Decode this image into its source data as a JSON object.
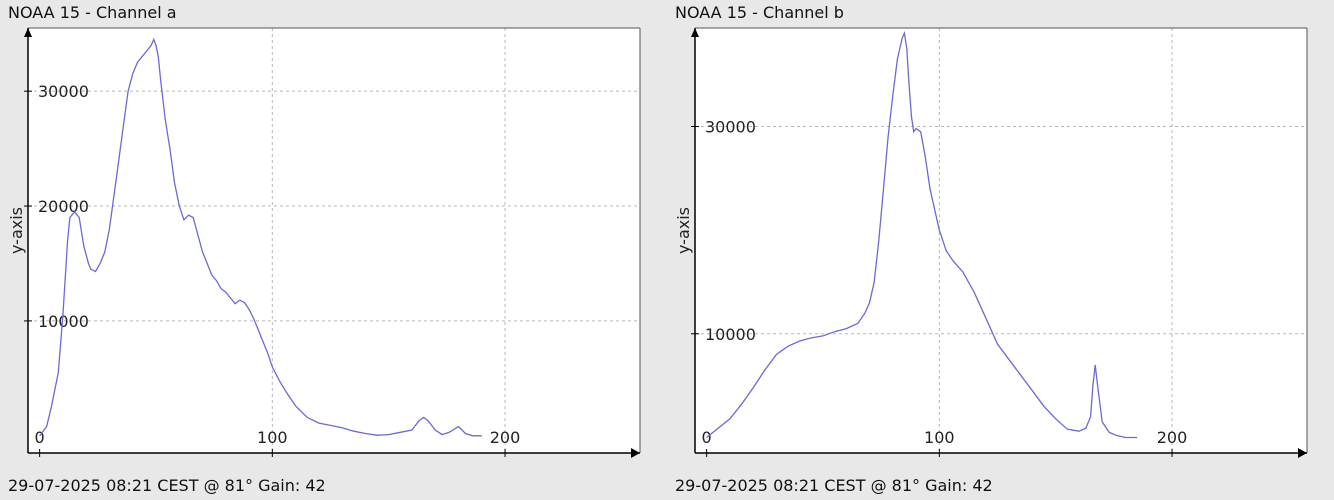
{
  "chart_data": [
    {
      "type": "line",
      "title": "NOAA 15 - Channel a",
      "footer": "29-07-2025 08:21 CEST @ 81° Gain: 42",
      "xlabel": "",
      "ylabel": "y-axis",
      "xlim": [
        -5,
        258
      ],
      "ylim": [
        -1500,
        35500
      ],
      "x_ticks": [
        0,
        100,
        200
      ],
      "y_ticks": [
        10000,
        20000,
        30000
      ],
      "grid": true,
      "series": [
        {
          "color": "#6a6ad6",
          "x": [
            0,
            3,
            5,
            8,
            10,
            12,
            13,
            15,
            17,
            19,
            21,
            22,
            24,
            26,
            28,
            30,
            32,
            34,
            36,
            38,
            40,
            42,
            44,
            46,
            48,
            49,
            50,
            51,
            52,
            54,
            56,
            58,
            60,
            62,
            64,
            66,
            68,
            70,
            72,
            74,
            76,
            78,
            80,
            82,
            84,
            86,
            88,
            90,
            92,
            94,
            96,
            98,
            100,
            103,
            106,
            110,
            115,
            120,
            125,
            130,
            135,
            140,
            145,
            150,
            155,
            160,
            163,
            165,
            167,
            170,
            173,
            176,
            180,
            183,
            186,
            190
          ],
          "y": [
            0,
            800,
            2500,
            5500,
            10500,
            17000,
            19000,
            19500,
            19000,
            16500,
            15000,
            14500,
            14300,
            15000,
            16000,
            18000,
            21000,
            24000,
            27000,
            30000,
            31500,
            32500,
            33000,
            33500,
            34000,
            34500,
            34000,
            33000,
            31000,
            27500,
            25000,
            22000,
            20000,
            18800,
            19200,
            19000,
            17500,
            16000,
            15000,
            14000,
            13500,
            12800,
            12500,
            12000,
            11500,
            11800,
            11600,
            11000,
            10200,
            9200,
            8200,
            7200,
            6000,
            4800,
            3800,
            2600,
            1600,
            1100,
            900,
            700,
            400,
            200,
            50,
            100,
            300,
            500,
            1300,
            1600,
            1300,
            500,
            100,
            300,
            800,
            200,
            0,
            0
          ]
        }
      ]
    },
    {
      "type": "line",
      "title": "NOAA 15 - Channel b",
      "footer": "29-07-2025 08:21 CEST @ 81° Gain: 42",
      "xlabel": "",
      "ylabel": "y-axis",
      "xlim": [
        -5,
        258
      ],
      "ylim": [
        -1500,
        39500
      ],
      "x_ticks": [
        0,
        100,
        200
      ],
      "y_ticks": [
        10000,
        30000
      ],
      "grid": true,
      "series": [
        {
          "color": "#6a6ad6",
          "x": [
            0,
            5,
            10,
            15,
            20,
            25,
            30,
            35,
            40,
            45,
            50,
            55,
            60,
            65,
            68,
            70,
            72,
            74,
            76,
            78,
            80,
            82,
            84,
            85,
            86,
            87,
            88,
            89,
            90,
            92,
            94,
            96,
            100,
            103,
            106,
            110,
            115,
            120,
            125,
            130,
            135,
            140,
            145,
            150,
            155,
            160,
            163,
            165,
            166,
            167,
            168,
            170,
            173,
            176,
            180,
            185
          ],
          "y": [
            0,
            900,
            1800,
            3200,
            4800,
            6500,
            8000,
            8800,
            9300,
            9600,
            9800,
            10200,
            10500,
            11000,
            12000,
            13000,
            15000,
            19000,
            24000,
            29000,
            33000,
            36500,
            38500,
            39000,
            37500,
            34000,
            31000,
            29500,
            29800,
            29500,
            27000,
            24000,
            20000,
            18000,
            17000,
            16000,
            14000,
            11500,
            9000,
            7500,
            6000,
            4500,
            3000,
            1800,
            800,
            600,
            900,
            2000,
            5000,
            7000,
            5000,
            1500,
            500,
            200,
            0,
            0
          ]
        }
      ]
    }
  ]
}
